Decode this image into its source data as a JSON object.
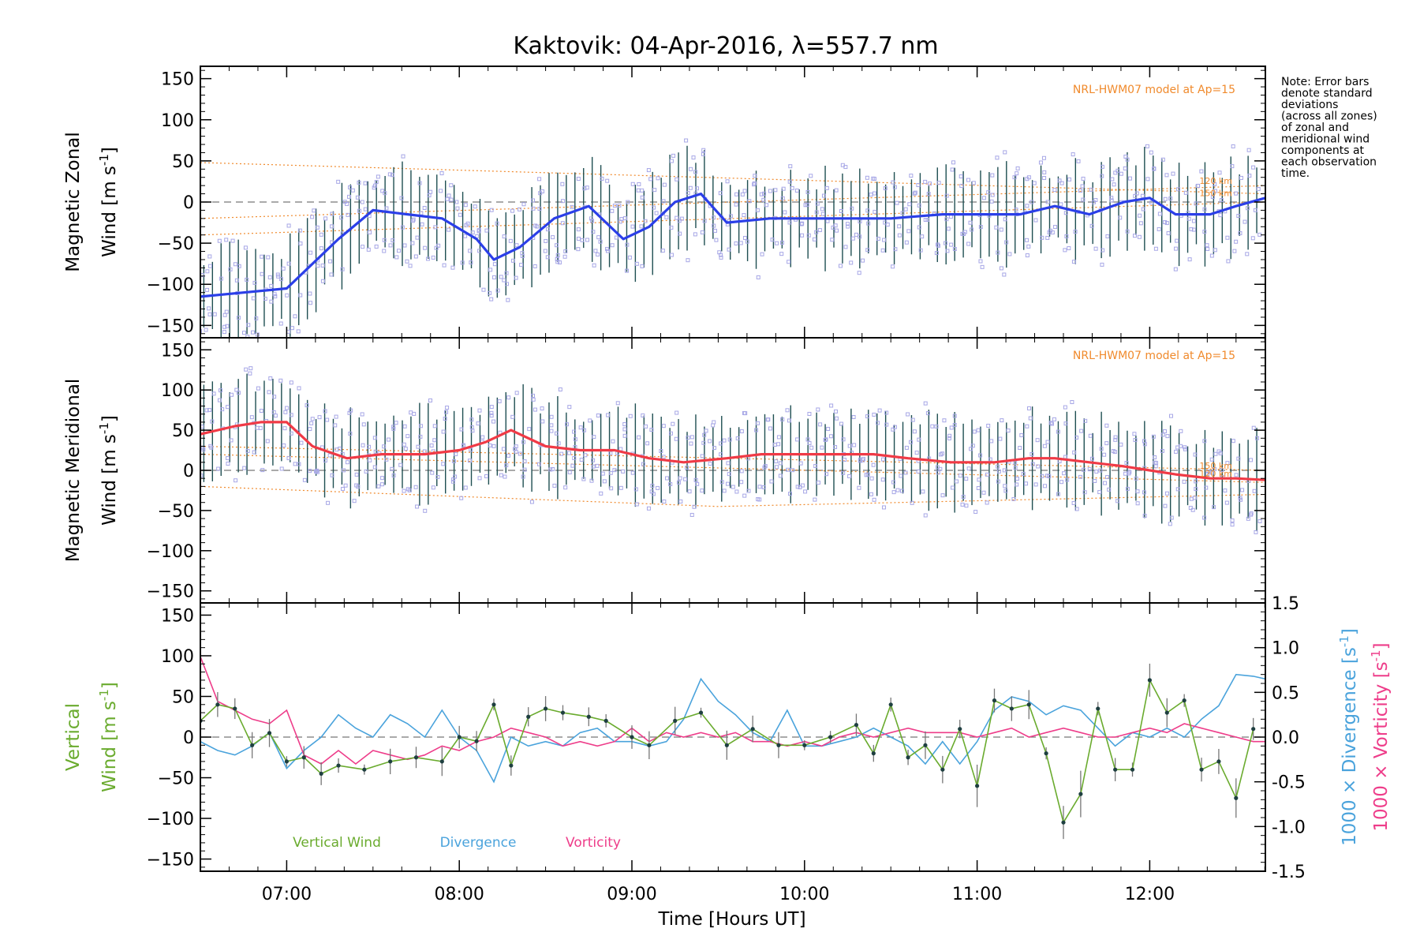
{
  "title": "Kaktovik: 04-Apr-2016, λ=557.7 nm",
  "note": [
    "Note: Error bars",
    "denote standard",
    "deviations",
    "(across all zones)",
    "of zonal and",
    "meridional wind",
    "components at",
    "each observation",
    "time."
  ],
  "colors": {
    "zonal": "#2b3fe8",
    "meridional": "#f03a46",
    "vertical": "#6aab2e",
    "divergence": "#4aa3dc",
    "vorticity": "#ee3d8a",
    "hwm": "#f08a2c",
    "scatter": "#a7a7e6",
    "errorbar": "#1f4f52"
  },
  "chart_data": [
    {
      "type": "line",
      "panel": "zonal",
      "ylabel_line1": "Magnetic Zonal",
      "ylabel_line2": "Wind [m s",
      "ylabel_sup": "-1",
      "ylabel_close": "]",
      "ylim": [
        -165,
        165
      ],
      "yticks": [
        "150",
        "100",
        "50",
        "0",
        "-50",
        "-100",
        "-150"
      ],
      "model_label": "NRL-HWM07 model at Ap=15",
      "model_alt_labels": [
        "120 km",
        "150 km"
      ],
      "series": [
        {
          "name": "Zonal wind",
          "x": [
            6.5,
            6.75,
            7.0,
            7.15,
            7.3,
            7.5,
            7.7,
            7.9,
            8.1,
            8.2,
            8.35,
            8.55,
            8.75,
            8.95,
            9.1,
            9.25,
            9.4,
            9.55,
            9.8,
            10.0,
            10.25,
            10.5,
            10.8,
            11.0,
            11.25,
            11.45,
            11.65,
            11.85,
            12.0,
            12.15,
            12.35,
            12.5,
            12.67
          ],
          "y": [
            -115,
            -110,
            -105,
            -75,
            -45,
            -10,
            -15,
            -20,
            -45,
            -70,
            -55,
            -20,
            -5,
            -45,
            -30,
            0,
            10,
            -25,
            -20,
            -20,
            -20,
            -20,
            -15,
            -15,
            -15,
            -5,
            -15,
            0,
            5,
            -15,
            -15,
            -5,
            5
          ]
        }
      ]
    },
    {
      "type": "line",
      "panel": "meridional",
      "ylabel_line1": "Magnetic Meridional",
      "ylabel_line2": "Wind [m s",
      "ylabel_sup": "-1",
      "ylabel_close": "]",
      "ylim": [
        -165,
        165
      ],
      "yticks": [
        "150",
        "100",
        "50",
        "0",
        "-50",
        "-100",
        "-150"
      ],
      "model_label": "NRL-HWM07 model at Ap=15",
      "model_alt_labels": [
        "150 km",
        "120 km"
      ],
      "series": [
        {
          "name": "Meridional wind",
          "x": [
            6.5,
            6.7,
            6.85,
            7.0,
            7.15,
            7.35,
            7.55,
            7.8,
            8.0,
            8.15,
            8.3,
            8.5,
            8.7,
            8.9,
            9.1,
            9.3,
            9.55,
            9.75,
            10.0,
            10.2,
            10.4,
            10.6,
            10.85,
            11.1,
            11.3,
            11.45,
            11.65,
            11.85,
            12.0,
            12.15,
            12.35,
            12.5,
            12.67
          ],
          "y": [
            45,
            55,
            60,
            60,
            30,
            15,
            20,
            20,
            25,
            35,
            50,
            30,
            25,
            25,
            15,
            10,
            15,
            20,
            20,
            20,
            20,
            15,
            10,
            10,
            15,
            15,
            10,
            5,
            0,
            -5,
            -10,
            -10,
            -12
          ]
        }
      ]
    },
    {
      "type": "line",
      "panel": "vertical",
      "ylabel_line1": "Vertical",
      "ylabel_line2": "Wind [m s",
      "ylabel_sup": "-1",
      "ylabel_close": "]",
      "ylim": [
        -165,
        165
      ],
      "yticks": [
        "150",
        "100",
        "50",
        "0",
        "-50",
        "-100",
        "-150"
      ],
      "y2lim": [
        -1.5,
        1.5
      ],
      "y2ticks": [
        "1.5",
        "1.0",
        "0.5",
        "0.0",
        "-0.5",
        "-1.0",
        "-1.5"
      ],
      "y2label_div": "1000 × Divergence [s",
      "y2label_vort": "1000 × Vorticity [s",
      "y2label_sup": "-1",
      "y2label_close": "]",
      "legend": [
        "Vertical Wind",
        "Divergence",
        "Vorticity"
      ],
      "series": [
        {
          "name": "Vertical Wind",
          "x": [
            6.5,
            6.6,
            6.7,
            6.8,
            6.9,
            7.0,
            7.1,
            7.2,
            7.3,
            7.45,
            7.6,
            7.75,
            7.9,
            8.0,
            8.1,
            8.2,
            8.3,
            8.4,
            8.5,
            8.6,
            8.75,
            8.85,
            9.0,
            9.1,
            9.25,
            9.4,
            9.55,
            9.7,
            9.85,
            10.0,
            10.15,
            10.3,
            10.4,
            10.5,
            10.6,
            10.7,
            10.8,
            10.9,
            11.0,
            11.1,
            11.2,
            11.3,
            11.4,
            11.5,
            11.6,
            11.7,
            11.8,
            11.9,
            12.0,
            12.1,
            12.2,
            12.3,
            12.4,
            12.5,
            12.6
          ],
          "y": [
            20,
            40,
            35,
            -10,
            5,
            -30,
            -25,
            -45,
            -35,
            -40,
            -30,
            -25,
            -30,
            0,
            -5,
            40,
            -35,
            25,
            35,
            30,
            25,
            20,
            0,
            -10,
            20,
            30,
            -10,
            10,
            -10,
            -10,
            0,
            15,
            -20,
            40,
            -25,
            -10,
            -40,
            10,
            -60,
            45,
            35,
            40,
            -20,
            -105,
            -70,
            35,
            -40,
            -40,
            70,
            30,
            45,
            -40,
            -30,
            -75,
            10
          ]
        },
        {
          "name": "Divergence",
          "x": [
            6.5,
            6.6,
            6.7,
            6.8,
            6.9,
            7.0,
            7.1,
            7.2,
            7.3,
            7.4,
            7.5,
            7.6,
            7.7,
            7.8,
            7.9,
            8.0,
            8.1,
            8.2,
            8.3,
            8.4,
            8.5,
            8.6,
            8.7,
            8.8,
            8.9,
            9.0,
            9.1,
            9.2,
            9.3,
            9.4,
            9.5,
            9.6,
            9.7,
            9.8,
            9.9,
            10.0,
            10.1,
            10.2,
            10.3,
            10.4,
            10.5,
            10.6,
            10.7,
            10.8,
            10.9,
            11.0,
            11.1,
            11.2,
            11.3,
            11.4,
            11.5,
            11.6,
            11.7,
            11.8,
            11.9,
            12.0,
            12.1,
            12.2,
            12.3,
            12.4,
            12.5,
            12.6,
            12.67
          ],
          "y": [
            -0.05,
            -0.15,
            -0.2,
            -0.1,
            0.05,
            -0.35,
            -0.15,
            0.0,
            0.25,
            0.1,
            0.0,
            0.25,
            0.15,
            0.0,
            0.3,
            0.0,
            -0.15,
            -0.5,
            0.0,
            -0.1,
            -0.05,
            -0.1,
            0.05,
            0.1,
            -0.05,
            -0.05,
            -0.1,
            -0.05,
            0.2,
            0.65,
            0.4,
            0.25,
            0.05,
            -0.05,
            0.3,
            -0.1,
            -0.1,
            -0.05,
            0.0,
            0.1,
            0.0,
            -0.1,
            -0.3,
            -0.05,
            -0.3,
            -0.05,
            0.3,
            0.45,
            0.4,
            0.25,
            0.35,
            0.3,
            0.1,
            -0.1,
            0.05,
            0.0,
            0.1,
            0.0,
            0.2,
            0.35,
            0.7,
            0.68,
            0.65
          ]
        },
        {
          "name": "Vorticity",
          "x": [
            6.5,
            6.6,
            6.7,
            6.8,
            6.9,
            7.0,
            7.1,
            7.2,
            7.3,
            7.4,
            7.5,
            7.6,
            7.7,
            7.8,
            7.9,
            8.0,
            8.1,
            8.2,
            8.3,
            8.4,
            8.5,
            8.6,
            8.7,
            8.8,
            8.9,
            9.0,
            9.1,
            9.2,
            9.3,
            9.4,
            9.5,
            9.6,
            9.7,
            9.8,
            9.9,
            10.0,
            10.1,
            10.2,
            10.3,
            10.4,
            10.5,
            10.6,
            10.7,
            10.8,
            10.9,
            11.0,
            11.1,
            11.2,
            11.3,
            11.4,
            11.5,
            11.6,
            11.7,
            11.8,
            11.9,
            12.0,
            12.1,
            12.2,
            12.3,
            12.4,
            12.5,
            12.6,
            12.67
          ],
          "y": [
            0.9,
            0.4,
            0.3,
            0.2,
            0.15,
            0.3,
            -0.2,
            -0.3,
            -0.15,
            -0.3,
            -0.15,
            -0.2,
            -0.25,
            -0.2,
            -0.1,
            -0.15,
            -0.05,
            0.0,
            0.1,
            0.05,
            0.0,
            -0.1,
            -0.05,
            -0.1,
            -0.05,
            0.1,
            -0.05,
            0.05,
            0.0,
            0.05,
            0.0,
            0.05,
            -0.05,
            -0.05,
            -0.1,
            -0.05,
            -0.1,
            0.0,
            0.05,
            0.0,
            0.05,
            0.1,
            0.05,
            0.05,
            0.05,
            0.0,
            0.05,
            0.1,
            0.0,
            0.05,
            0.1,
            0.05,
            0.0,
            0.0,
            0.05,
            0.1,
            0.05,
            0.15,
            0.1,
            0.05,
            0.0,
            -0.05,
            -0.05
          ]
        }
      ]
    }
  ],
  "xaxis": {
    "label": "Time [Hours UT]",
    "xlim": [
      6.5,
      12.67
    ],
    "ticks": [
      {
        "value": 7,
        "label": "07:00"
      },
      {
        "value": 8,
        "label": "08:00"
      },
      {
        "value": 9,
        "label": "09:00"
      },
      {
        "value": 10,
        "label": "10:00"
      },
      {
        "value": 11,
        "label": "11:00"
      },
      {
        "value": 12,
        "label": "12:00"
      }
    ]
  }
}
